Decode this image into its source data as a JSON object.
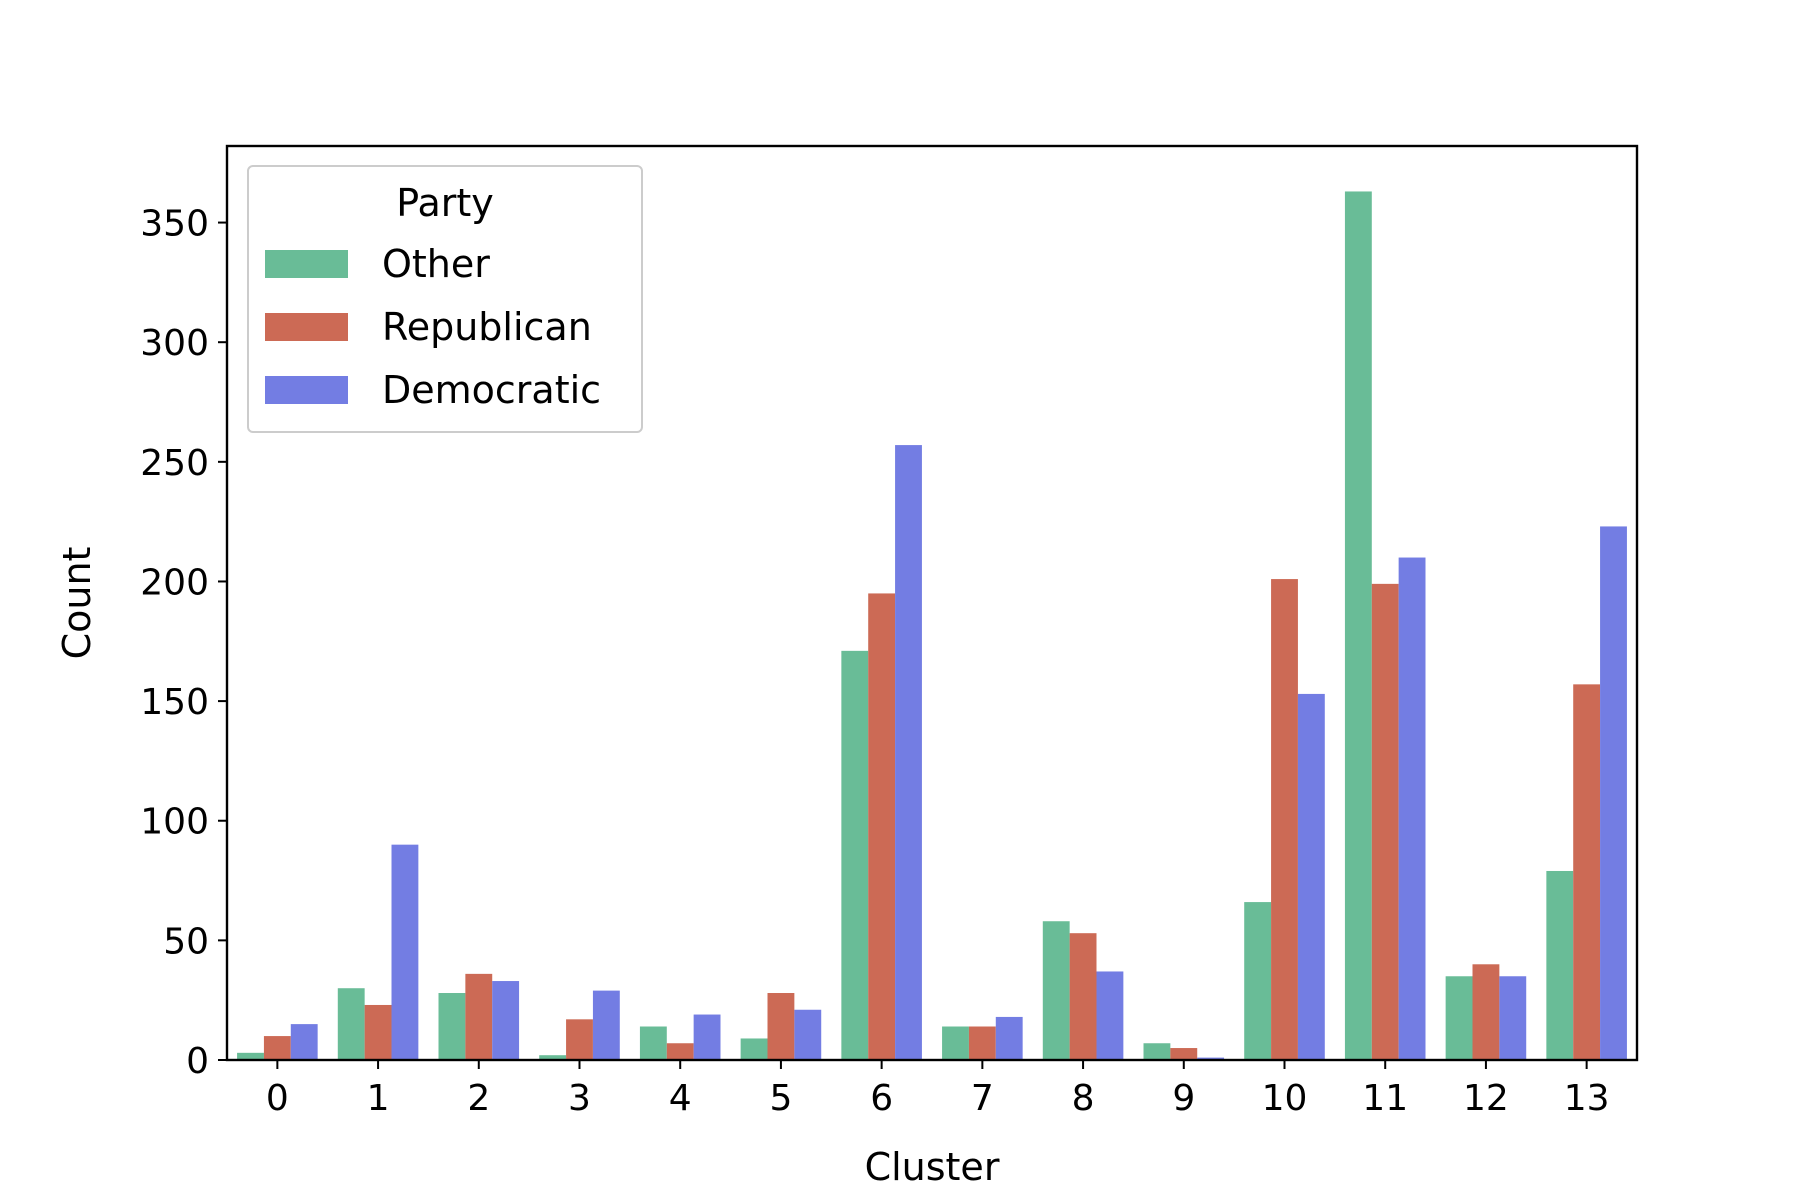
{
  "chart_data": {
    "type": "bar",
    "xlabel": "Cluster",
    "ylabel": "Count",
    "categories": [
      "0",
      "1",
      "2",
      "3",
      "4",
      "5",
      "6",
      "7",
      "8",
      "9",
      "10",
      "11",
      "12",
      "13"
    ],
    "ylim": [
      0,
      382
    ],
    "yticks": [
      0,
      50,
      100,
      150,
      200,
      250,
      300,
      350
    ],
    "legend": {
      "title": "Party",
      "position": "upper-left"
    },
    "grid": false,
    "series": [
      {
        "name": "Other",
        "color": "#69bc97",
        "values": [
          3,
          30,
          28,
          2,
          14,
          9,
          171,
          14,
          58,
          7,
          66,
          363,
          35,
          79
        ]
      },
      {
        "name": "Republican",
        "color": "#cc6a55",
        "values": [
          10,
          23,
          36,
          17,
          7,
          28,
          195,
          14,
          53,
          5,
          201,
          199,
          40,
          157
        ]
      },
      {
        "name": "Democratic",
        "color": "#737de3",
        "values": [
          15,
          90,
          33,
          29,
          19,
          21,
          257,
          18,
          37,
          1,
          153,
          210,
          35,
          223
        ]
      }
    ]
  }
}
